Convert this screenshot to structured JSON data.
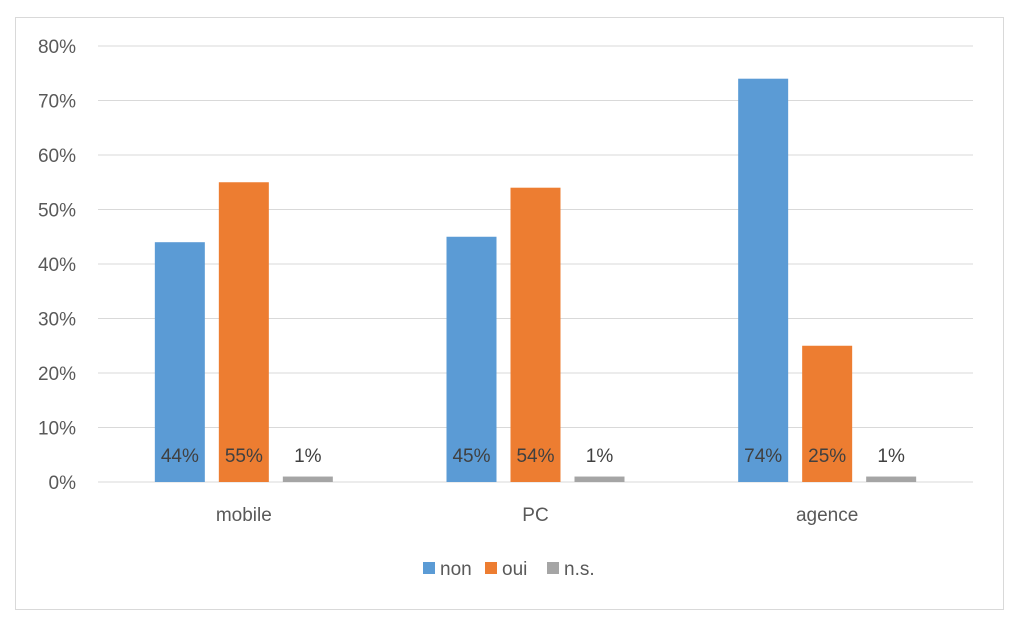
{
  "chart_data": {
    "type": "bar",
    "categories": [
      "mobile",
      "PC",
      "agence"
    ],
    "series": [
      {
        "name": "non",
        "values": [
          44,
          45,
          74
        ],
        "labels": [
          "44%",
          "45%",
          "74%"
        ],
        "color": "#5b9bd5"
      },
      {
        "name": "oui",
        "values": [
          55,
          54,
          25
        ],
        "labels": [
          "55%",
          "54%",
          "25%"
        ],
        "color": "#ed7d31"
      },
      {
        "name": "n.s.",
        "values": [
          1,
          1,
          1
        ],
        "labels": [
          "1%",
          "1%",
          "1%"
        ],
        "color": "#a5a5a5"
      }
    ],
    "ylim": [
      0,
      80
    ],
    "yticks": [
      "0%",
      "10%",
      "20%",
      "30%",
      "40%",
      "50%",
      "60%",
      "70%",
      "80%"
    ],
    "grid": true,
    "legend_position": "bottom"
  }
}
